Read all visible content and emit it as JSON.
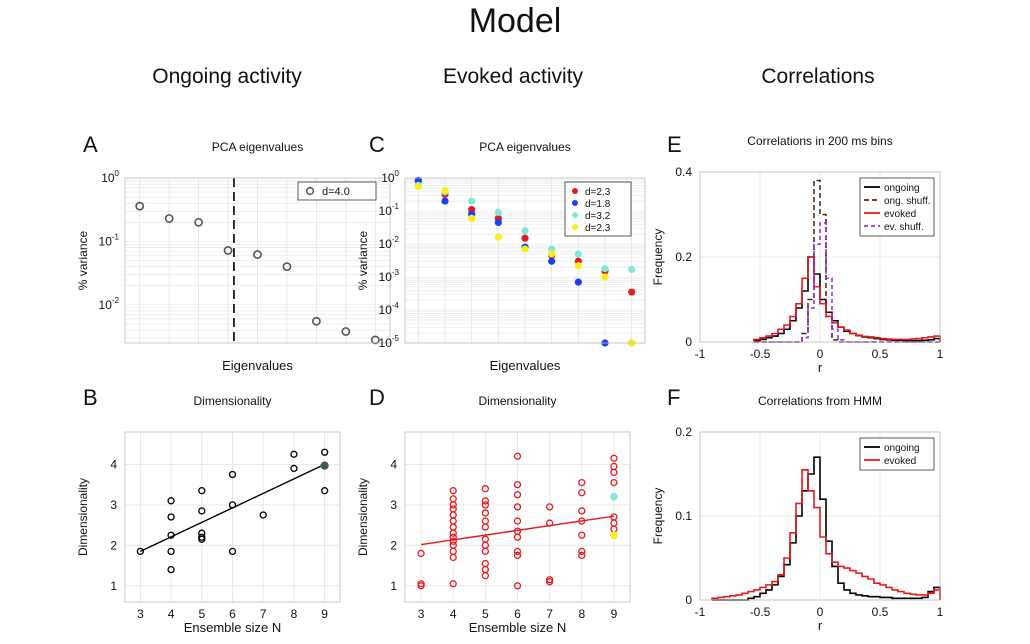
{
  "figure": {
    "title": "Model",
    "columns": [
      "Ongoing activity",
      "Evoked activity",
      "Correlations"
    ],
    "colors": {
      "black": "#000000",
      "red": "#e8181c",
      "blue": "#1f3ef0",
      "cyan": "#7fe8d8",
      "yellow": "#f5ef1a",
      "brown": "#4a2a14",
      "purple": "#9b2fe0",
      "darkpoint": "#3d5a55",
      "grid": "#e3e3e3"
    }
  },
  "chart_data": [
    {
      "id": "A",
      "type": "scatter",
      "title": "PCA eigenvalues",
      "xlabel": "Eigenvalues",
      "ylabel": "% variance",
      "yscale": "log",
      "ylim": [
        0.0025,
        1
      ],
      "xlim": [
        0.5,
        9.5
      ],
      "yticks": [
        {
          "v": 1,
          "base": "10",
          "exp": "0"
        },
        {
          "v": 0.1,
          "base": "10",
          "exp": "-1"
        },
        {
          "v": 0.01,
          "base": "10",
          "exp": "-2"
        }
      ],
      "legend": [
        "d=4.0"
      ],
      "legend_position": "top-right",
      "vline_x": 4.2,
      "x": [
        1,
        2,
        3,
        4,
        5,
        6,
        7,
        8,
        9
      ],
      "y": [
        0.36,
        0.23,
        0.2,
        0.072,
        0.062,
        0.04,
        0.0055,
        0.0038,
        0.0028
      ]
    },
    {
      "id": "B",
      "type": "scatter",
      "title": "Dimensionality",
      "xlabel": "Ensemble size N",
      "ylabel": "Dimensionality",
      "xlim": [
        2.5,
        9.5
      ],
      "ylim": [
        0.6,
        4.8
      ],
      "xticks": [
        "3",
        "4",
        "5",
        "6",
        "7",
        "8",
        "9"
      ],
      "yticks": [
        "1",
        "2",
        "3",
        "4"
      ],
      "points": [
        [
          3,
          1.85
        ],
        [
          4,
          1.4
        ],
        [
          4,
          1.85
        ],
        [
          4,
          2.25
        ],
        [
          4,
          2.7
        ],
        [
          4,
          3.1
        ],
        [
          5,
          2.15
        ],
        [
          5,
          2.2
        ],
        [
          5,
          2.3
        ],
        [
          5,
          2.85
        ],
        [
          5,
          3.35
        ],
        [
          6,
          1.85
        ],
        [
          6,
          3.0
        ],
        [
          6,
          3.75
        ],
        [
          7,
          2.75
        ],
        [
          8,
          3.9
        ],
        [
          8,
          4.25
        ],
        [
          9,
          3.35
        ],
        [
          9,
          4.3
        ]
      ],
      "highlight": [
        9,
        3.97
      ],
      "fit": [
        [
          3,
          1.85
        ],
        [
          9,
          4.0
        ]
      ]
    },
    {
      "id": "C",
      "type": "scatter",
      "title": "PCA eigenvalues",
      "xlabel": "Eigenvalues",
      "ylabel": "% variance",
      "yscale": "log",
      "ylim": [
        1e-05,
        1
      ],
      "xlim": [
        0.5,
        9.5
      ],
      "yticks": [
        {
          "v": 1,
          "base": "10",
          "exp": "0"
        },
        {
          "v": 0.1,
          "base": "10",
          "exp": "-1"
        },
        {
          "v": 0.01,
          "base": "10",
          "exp": "-2"
        },
        {
          "v": 0.001,
          "base": "10",
          "exp": "-3"
        },
        {
          "v": 0.0001,
          "base": "10",
          "exp": "-4"
        },
        {
          "v": 1e-05,
          "base": "10",
          "exp": "-5"
        }
      ],
      "legend_position": "top-right",
      "series": [
        {
          "name": "d=2.3",
          "color": "red",
          "x": [
            1,
            2,
            3,
            4,
            5,
            6,
            7,
            8,
            9
          ],
          "y": [
            0.8,
            0.32,
            0.11,
            0.06,
            0.015,
            0.0045,
            0.003,
            0.0015,
            0.00035
          ]
        },
        {
          "name": "d=1.8",
          "color": "blue",
          "x": [
            1,
            2,
            3,
            4,
            5,
            6,
            7,
            8,
            9
          ],
          "y": [
            0.85,
            0.2,
            0.08,
            0.045,
            0.008,
            0.003,
            0.0007,
            1e-05,
            1e-05
          ]
        },
        {
          "name": "d=3.2",
          "color": "cyan",
          "x": [
            1,
            2,
            3,
            4,
            5,
            6,
            7,
            8,
            9
          ],
          "y": [
            0.6,
            0.38,
            0.2,
            0.09,
            0.025,
            0.007,
            0.005,
            0.0018,
            0.0017
          ]
        },
        {
          "name": "d=2.3",
          "color": "yellow",
          "x": [
            1,
            2,
            3,
            4,
            5,
            6,
            7,
            8,
            9
          ],
          "y": [
            0.55,
            0.42,
            0.06,
            0.016,
            0.007,
            0.005,
            0.0022,
            0.001,
            1e-05
          ]
        }
      ]
    },
    {
      "id": "D",
      "type": "scatter",
      "title": "Dimensionality",
      "xlabel": "Ensemble size N",
      "ylabel": "Dimensionality",
      "xlim": [
        2.5,
        9.5
      ],
      "ylim": [
        0.6,
        4.8
      ],
      "xticks": [
        "3",
        "4",
        "5",
        "6",
        "7",
        "8",
        "9"
      ],
      "yticks": [
        "1",
        "2",
        "3",
        "4"
      ],
      "points": [
        [
          3,
          1.0
        ],
        [
          3,
          1.05
        ],
        [
          3,
          1.8
        ],
        [
          4,
          1.05
        ],
        [
          4,
          1.7
        ],
        [
          4,
          1.85
        ],
        [
          4,
          2.0
        ],
        [
          4,
          2.1
        ],
        [
          4,
          2.2
        ],
        [
          4,
          2.3
        ],
        [
          4,
          2.45
        ],
        [
          4,
          2.6
        ],
        [
          4,
          2.75
        ],
        [
          4,
          2.9
        ],
        [
          4,
          3.0
        ],
        [
          4,
          3.15
        ],
        [
          4,
          3.35
        ],
        [
          5,
          1.25
        ],
        [
          5,
          1.4
        ],
        [
          5,
          1.55
        ],
        [
          5,
          1.85
        ],
        [
          5,
          2.0
        ],
        [
          5,
          2.15
        ],
        [
          5,
          2.45
        ],
        [
          5,
          2.6
        ],
        [
          5,
          2.8
        ],
        [
          5,
          3.0
        ],
        [
          5,
          3.1
        ],
        [
          5,
          3.4
        ],
        [
          6,
          1.0
        ],
        [
          6,
          1.75
        ],
        [
          6,
          1.85
        ],
        [
          6,
          2.2
        ],
        [
          6,
          2.35
        ],
        [
          6,
          2.6
        ],
        [
          6,
          2.95
        ],
        [
          6,
          3.25
        ],
        [
          6,
          3.5
        ],
        [
          6,
          4.2
        ],
        [
          7,
          1.1
        ],
        [
          7,
          1.15
        ],
        [
          7,
          2.55
        ],
        [
          7,
          2.95
        ],
        [
          8,
          1.75
        ],
        [
          8,
          1.85
        ],
        [
          8,
          2.25
        ],
        [
          8,
          2.6
        ],
        [
          8,
          2.85
        ],
        [
          8,
          3.3
        ],
        [
          8,
          3.55
        ],
        [
          9,
          2.25
        ],
        [
          9,
          2.4
        ],
        [
          9,
          2.55
        ],
        [
          9,
          2.7
        ],
        [
          9,
          3.55
        ],
        [
          9,
          3.8
        ],
        [
          9,
          3.95
        ],
        [
          9,
          4.15
        ]
      ],
      "highlight_cyan": [
        9,
        3.2
      ],
      "highlight_yellow": [
        9,
        2.25
      ],
      "fit": [
        [
          3,
          2.02
        ],
        [
          9,
          2.72
        ]
      ]
    },
    {
      "id": "E",
      "type": "line",
      "title": "Correlations in 200 ms bins",
      "xlabel": "r",
      "ylabel": "Frequency",
      "xlim": [
        -1,
        1
      ],
      "ylim": [
        0,
        0.4
      ],
      "xticks": [
        "-1",
        "-0.5",
        "0",
        "0.5",
        "1"
      ],
      "yticks": [
        "0",
        "0.2",
        "0.4"
      ],
      "legend_position": "top-right",
      "bin_edges": [
        -0.55,
        -0.5,
        -0.45,
        -0.4,
        -0.35,
        -0.3,
        -0.25,
        -0.2,
        -0.15,
        -0.1,
        -0.05,
        0,
        0.05,
        0.1,
        0.15,
        0.2,
        0.25,
        0.3,
        0.35,
        0.4,
        0.45,
        0.5,
        0.55,
        0.6,
        0.65,
        0.7,
        0.75,
        0.8,
        0.85,
        0.9,
        0.95,
        1.0
      ],
      "series": [
        {
          "name": "ongoing",
          "color": "black",
          "dash": "",
          "values": [
            0.003,
            0.006,
            0.01,
            0.014,
            0.02,
            0.03,
            0.05,
            0.08,
            0.12,
            0.2,
            0.16,
            0.1,
            0.07,
            0.05,
            0.035,
            0.025,
            0.02,
            0.015,
            0.012,
            0.01,
            0.008,
            0.006,
            0.005,
            0.004,
            0.004,
            0.003,
            0.003,
            0.003,
            0.004,
            0.005,
            0.008
          ]
        },
        {
          "name": "ong. shuff.",
          "color": "brown",
          "dash": "5,3",
          "values": [
            0,
            0,
            0,
            0,
            0,
            0,
            0,
            0,
            0.02,
            0.1,
            0.38,
            0.3,
            0.06,
            0.005,
            0,
            0,
            0,
            0,
            0,
            0,
            0,
            0,
            0,
            0,
            0,
            0,
            0,
            0,
            0,
            0,
            0
          ]
        },
        {
          "name": "evoked",
          "color": "red",
          "dash": "",
          "values": [
            0.006,
            0.01,
            0.014,
            0.02,
            0.03,
            0.04,
            0.06,
            0.09,
            0.15,
            0.2,
            0.13,
            0.09,
            0.06,
            0.045,
            0.035,
            0.028,
            0.02,
            0.016,
            0.013,
            0.012,
            0.01,
            0.008,
            0.007,
            0.006,
            0.006,
            0.006,
            0.007,
            0.008,
            0.01,
            0.012,
            0.014
          ]
        },
        {
          "name": "ev. shuff.",
          "color": "purple",
          "dash": "4,3",
          "values": [
            0,
            0,
            0,
            0,
            0,
            0,
            0,
            0,
            0.01,
            0.08,
            0.23,
            0.28,
            0.15,
            0.03,
            0.005,
            0,
            0,
            0,
            0,
            0,
            0,
            0,
            0,
            0,
            0,
            0,
            0,
            0,
            0,
            0,
            0
          ]
        }
      ]
    },
    {
      "id": "F",
      "type": "line",
      "title": "Correlations from HMM",
      "xlabel": "r",
      "ylabel": "Frequency",
      "xlim": [
        -1,
        1
      ],
      "ylim": [
        0,
        0.2
      ],
      "xticks": [
        "-1",
        "-0.5",
        "0",
        "0.5",
        "1"
      ],
      "yticks": [
        "0",
        "0.1",
        "0.2"
      ],
      "legend_position": "top-right",
      "bin_edges": [
        -0.9,
        -0.85,
        -0.8,
        -0.75,
        -0.7,
        -0.65,
        -0.6,
        -0.55,
        -0.5,
        -0.45,
        -0.4,
        -0.35,
        -0.3,
        -0.25,
        -0.2,
        -0.15,
        -0.1,
        -0.05,
        0,
        0.05,
        0.1,
        0.15,
        0.2,
        0.25,
        0.3,
        0.35,
        0.4,
        0.45,
        0.5,
        0.55,
        0.6,
        0.65,
        0.7,
        0.75,
        0.8,
        0.85,
        0.9,
        0.95,
        1.0
      ],
      "series": [
        {
          "name": "ongoing",
          "color": "black",
          "values": [
            0,
            0,
            0,
            0,
            0,
            0,
            0.002,
            0.004,
            0.008,
            0.012,
            0.018,
            0.028,
            0.042,
            0.068,
            0.1,
            0.13,
            0.15,
            0.17,
            0.12,
            0.07,
            0.04,
            0.02,
            0.012,
            0.008,
            0.006,
            0.005,
            0.004,
            0.004,
            0.003,
            0.003,
            0.002,
            0.002,
            0.002,
            0.002,
            0.002,
            0.003,
            0.01,
            0.015
          ]
        },
        {
          "name": "evoked",
          "color": "red",
          "values": [
            0.002,
            0.003,
            0.004,
            0.005,
            0.006,
            0.008,
            0.01,
            0.012,
            0.015,
            0.018,
            0.022,
            0.03,
            0.05,
            0.08,
            0.115,
            0.155,
            0.13,
            0.11,
            0.075,
            0.055,
            0.045,
            0.04,
            0.038,
            0.035,
            0.032,
            0.028,
            0.025,
            0.02,
            0.018,
            0.015,
            0.012,
            0.01,
            0.008,
            0.007,
            0.006,
            0.006,
            0.008,
            0.012
          ]
        }
      ]
    }
  ]
}
